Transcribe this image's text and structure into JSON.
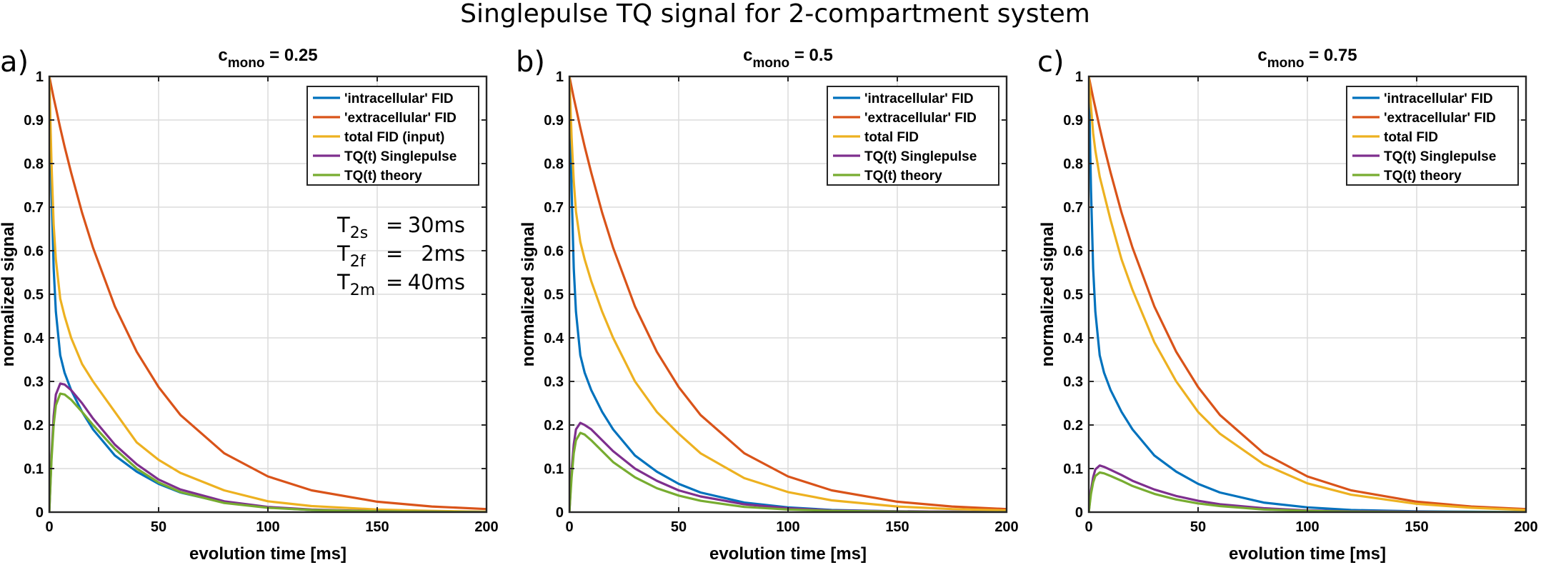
{
  "figure_title": "Singlepulse TQ signal for 2-compartment system",
  "colors": {
    "intracellular": "#0072BD",
    "extracellular": "#D95319",
    "total": "#EDB120",
    "tq_singlepulse": "#7E2F8E",
    "tq_theory": "#77AC30"
  },
  "chart_data": [
    {
      "type": "line",
      "panel_label": "a)",
      "title_prefix": "c",
      "title_sub": "mono",
      "title_suffix": " = 0.25",
      "xlabel": "evolution time [ms]",
      "ylabel": "normalized signal",
      "xlim": [
        0,
        200
      ],
      "ylim": [
        0,
        1
      ],
      "xticks": [
        0,
        50,
        100,
        150,
        200
      ],
      "yticks": [
        0,
        0.1,
        0.2,
        0.3,
        0.4,
        0.5,
        0.6,
        0.7,
        0.8,
        0.9,
        1
      ],
      "grid": true,
      "legend_position": "top-right",
      "x": [
        0,
        1,
        2,
        3,
        5,
        7,
        10,
        15,
        20,
        30,
        40,
        50,
        60,
        80,
        100,
        120,
        150,
        175,
        200
      ],
      "series": [
        {
          "name": "'intracellular' FID",
          "color_key": "intracellular",
          "values": [
            1.0,
            0.74,
            0.56,
            0.46,
            0.36,
            0.32,
            0.28,
            0.23,
            0.19,
            0.13,
            0.093,
            0.065,
            0.045,
            0.022,
            0.011,
            0.005,
            0.002,
            0.001,
            0.0
          ]
        },
        {
          "name": "'extracellular' FID",
          "color_key": "extracellular",
          "values": [
            1.0,
            0.975,
            0.951,
            0.928,
            0.882,
            0.839,
            0.779,
            0.687,
            0.607,
            0.472,
            0.368,
            0.287,
            0.223,
            0.135,
            0.082,
            0.05,
            0.024,
            0.013,
            0.007
          ]
        },
        {
          "name": "total FID (input)",
          "color_key": "total",
          "values": [
            1.0,
            0.8,
            0.66,
            0.58,
            0.49,
            0.45,
            0.4,
            0.34,
            0.3,
            0.23,
            0.16,
            0.12,
            0.09,
            0.05,
            0.025,
            0.014,
            0.006,
            0.003,
            0.001
          ]
        },
        {
          "name": "TQ(t) Singlepulse",
          "color_key": "tq_singlepulse",
          "values": [
            0.0,
            0.13,
            0.22,
            0.27,
            0.295,
            0.293,
            0.28,
            0.25,
            0.215,
            0.155,
            0.11,
            0.075,
            0.052,
            0.025,
            0.012,
            0.006,
            0.002,
            0.001,
            0.0
          ]
        },
        {
          "name": "TQ(t) theory",
          "color_key": "tq_theory",
          "values": [
            0.0,
            0.12,
            0.2,
            0.245,
            0.272,
            0.27,
            0.258,
            0.23,
            0.2,
            0.145,
            0.1,
            0.068,
            0.046,
            0.021,
            0.01,
            0.005,
            0.002,
            0.001,
            0.0
          ]
        }
      ],
      "annotation": [
        {
          "sym": "T",
          "sub": "2s",
          "eq": "=",
          "val": "30ms"
        },
        {
          "sym": "T",
          "sub": "2f",
          "eq": "=",
          "val": "2ms"
        },
        {
          "sym": "T",
          "sub": "2m",
          "eq": "=",
          "val": "40ms"
        }
      ]
    },
    {
      "type": "line",
      "panel_label": "b)",
      "title_prefix": "c",
      "title_sub": "mono",
      "title_suffix": " = 0.5",
      "xlabel": "evolution time [ms]",
      "ylabel": "normalized signal",
      "xlim": [
        0,
        200
      ],
      "ylim": [
        0,
        1
      ],
      "xticks": [
        0,
        50,
        100,
        150,
        200
      ],
      "yticks": [
        0,
        0.1,
        0.2,
        0.3,
        0.4,
        0.5,
        0.6,
        0.7,
        0.8,
        0.9,
        1
      ],
      "grid": true,
      "legend_position": "top-right",
      "x": [
        0,
        1,
        2,
        3,
        5,
        7,
        10,
        15,
        20,
        30,
        40,
        50,
        60,
        80,
        100,
        120,
        150,
        175,
        200
      ],
      "series": [
        {
          "name": "'intracellular' FID",
          "color_key": "intracellular",
          "values": [
            1.0,
            0.74,
            0.56,
            0.46,
            0.36,
            0.32,
            0.28,
            0.23,
            0.19,
            0.13,
            0.093,
            0.065,
            0.045,
            0.022,
            0.011,
            0.005,
            0.002,
            0.001,
            0.0
          ]
        },
        {
          "name": "'extracellular' FID",
          "color_key": "extracellular",
          "values": [
            1.0,
            0.975,
            0.951,
            0.928,
            0.882,
            0.839,
            0.779,
            0.687,
            0.607,
            0.472,
            0.368,
            0.287,
            0.223,
            0.135,
            0.082,
            0.05,
            0.024,
            0.013,
            0.007
          ]
        },
        {
          "name": "total FID",
          "color_key": "total",
          "values": [
            1.0,
            0.86,
            0.76,
            0.69,
            0.62,
            0.58,
            0.53,
            0.46,
            0.4,
            0.3,
            0.23,
            0.18,
            0.135,
            0.078,
            0.046,
            0.027,
            0.013,
            0.007,
            0.004
          ]
        },
        {
          "name": "TQ(t) Singlepulse",
          "color_key": "tq_singlepulse",
          "values": [
            0.0,
            0.095,
            0.155,
            0.19,
            0.205,
            0.2,
            0.19,
            0.165,
            0.14,
            0.1,
            0.072,
            0.05,
            0.036,
            0.018,
            0.009,
            0.004,
            0.002,
            0.001,
            0.0
          ]
        },
        {
          "name": "TQ(t) theory",
          "color_key": "tq_theory",
          "values": [
            0.0,
            0.08,
            0.135,
            0.165,
            0.182,
            0.178,
            0.165,
            0.14,
            0.115,
            0.08,
            0.055,
            0.038,
            0.026,
            0.012,
            0.006,
            0.003,
            0.001,
            0.0,
            0.0
          ]
        }
      ]
    },
    {
      "type": "line",
      "panel_label": "c)",
      "title_prefix": "c",
      "title_sub": "mono",
      "title_suffix": " = 0.75",
      "xlabel": "evolution time [ms]",
      "ylabel": "normalized signal",
      "xlim": [
        0,
        200
      ],
      "ylim": [
        0,
        1
      ],
      "xticks": [
        0,
        50,
        100,
        150,
        200
      ],
      "yticks": [
        0,
        0.1,
        0.2,
        0.3,
        0.4,
        0.5,
        0.6,
        0.7,
        0.8,
        0.9,
        1
      ],
      "grid": true,
      "legend_position": "top-right",
      "x": [
        0,
        1,
        2,
        3,
        5,
        7,
        10,
        15,
        20,
        30,
        40,
        50,
        60,
        80,
        100,
        120,
        150,
        175,
        200
      ],
      "series": [
        {
          "name": "'intracellular' FID",
          "color_key": "intracellular",
          "values": [
            1.0,
            0.74,
            0.56,
            0.46,
            0.36,
            0.32,
            0.28,
            0.23,
            0.19,
            0.13,
            0.093,
            0.065,
            0.045,
            0.022,
            0.011,
            0.005,
            0.002,
            0.001,
            0.0
          ]
        },
        {
          "name": "'extracellular' FID",
          "color_key": "extracellular",
          "values": [
            1.0,
            0.975,
            0.951,
            0.928,
            0.882,
            0.839,
            0.779,
            0.687,
            0.607,
            0.472,
            0.368,
            0.287,
            0.223,
            0.135,
            0.082,
            0.05,
            0.024,
            0.013,
            0.007
          ]
        },
        {
          "name": "total FID",
          "color_key": "total",
          "values": [
            1.0,
            0.93,
            0.87,
            0.83,
            0.77,
            0.73,
            0.67,
            0.58,
            0.51,
            0.39,
            0.3,
            0.23,
            0.18,
            0.11,
            0.066,
            0.04,
            0.019,
            0.01,
            0.005
          ]
        },
        {
          "name": "TQ(t) Singlepulse",
          "color_key": "tq_singlepulse",
          "values": [
            0.0,
            0.05,
            0.08,
            0.098,
            0.107,
            0.104,
            0.097,
            0.085,
            0.072,
            0.052,
            0.037,
            0.026,
            0.018,
            0.009,
            0.004,
            0.002,
            0.001,
            0.0,
            0.0
          ]
        },
        {
          "name": "TQ(t) theory",
          "color_key": "tq_theory",
          "values": [
            0.0,
            0.042,
            0.068,
            0.083,
            0.091,
            0.089,
            0.083,
            0.072,
            0.06,
            0.042,
            0.029,
            0.02,
            0.014,
            0.006,
            0.003,
            0.001,
            0.0,
            0.0,
            0.0
          ]
        }
      ]
    }
  ]
}
